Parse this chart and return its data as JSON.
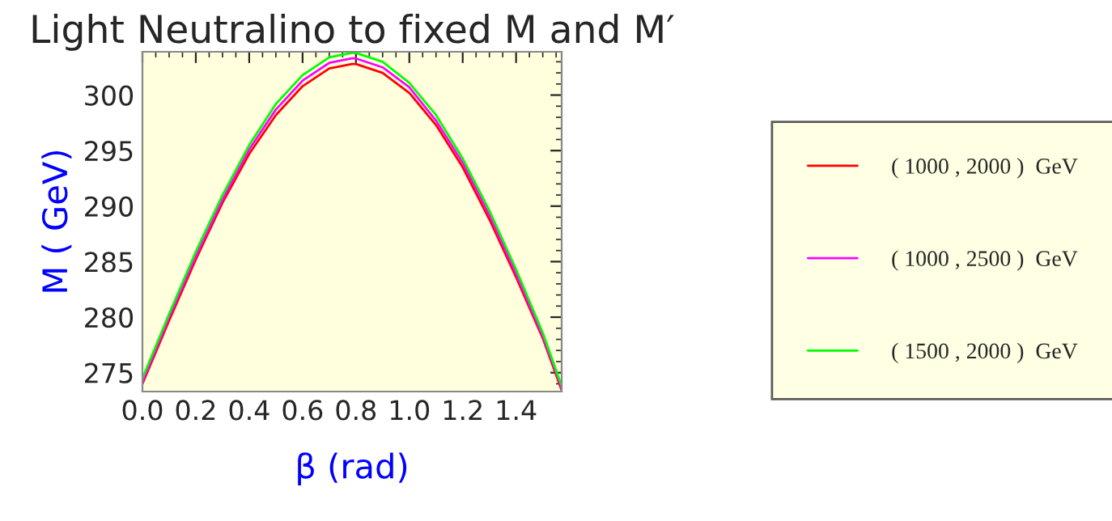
{
  "chart_data": {
    "type": "line",
    "title": "Light Neutralino to fixed M and M′",
    "xlabel": "β (rad)",
    "ylabel": "M ( GeV)",
    "x": [
      0,
      0.1,
      0.2,
      0.3,
      0.4,
      0.5,
      0.6,
      0.7,
      0.785,
      0.8,
      0.9,
      1.0,
      1.1,
      1.2,
      1.3,
      1.4,
      1.5,
      1.5708
    ],
    "series": [
      {
        "name": "( 1000 , 2000 )  GeV",
        "color": "#ff0000",
        "values": [
          274.0,
          279.7,
          285.2,
          290.3,
          294.7,
          298.2,
          300.8,
          302.4,
          302.8,
          302.8,
          302.0,
          300.2,
          297.3,
          293.5,
          288.8,
          283.6,
          278.1,
          273.4
        ]
      },
      {
        "name": "( 1000 , 2500 )  GeV",
        "color": "#ff00ff",
        "values": [
          274.2,
          280.0,
          285.5,
          290.6,
          295.1,
          298.7,
          301.3,
          302.9,
          303.3,
          303.3,
          302.5,
          300.7,
          297.7,
          293.9,
          289.2,
          283.9,
          278.3,
          273.6
        ]
      },
      {
        "name": "( 1500 , 2000 )  GeV",
        "color": "#00ff00",
        "values": [
          274.5,
          280.3,
          285.9,
          291.0,
          295.5,
          299.2,
          301.8,
          303.4,
          303.8,
          303.8,
          303.0,
          301.1,
          298.2,
          294.3,
          289.6,
          284.3,
          278.6,
          273.8
        ]
      }
    ],
    "xlim": [
      0,
      1.5708
    ],
    "ylim": [
      273.3,
      303.9
    ],
    "xticks": [
      {
        "value": 0,
        "label": "0.0"
      },
      0.2,
      0.4,
      0.6,
      0.8,
      {
        "value": 1,
        "label": "1.0"
      },
      1.2,
      1.4
    ],
    "yticks": [
      275,
      280,
      285,
      290,
      295,
      300
    ],
    "grid": false,
    "legend": "right",
    "marker": "none",
    "line_style": "solid"
  }
}
